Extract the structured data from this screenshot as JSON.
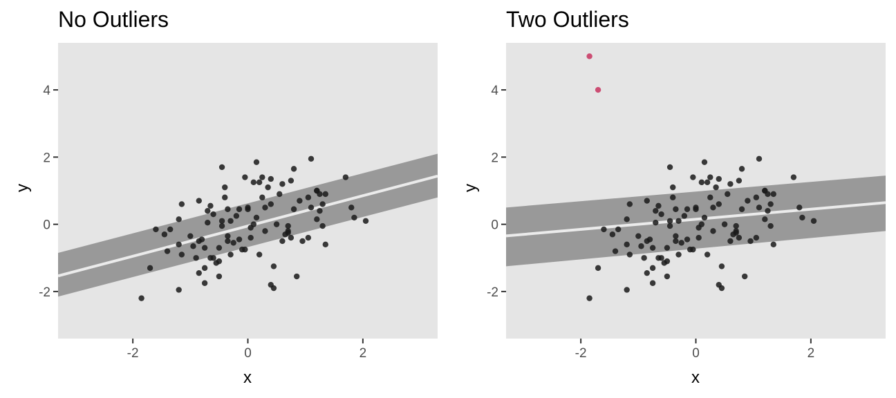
{
  "colors": {
    "panel_bg": "#e5e5e5",
    "ribbon": "#999999",
    "fit_line": "#ebebeb",
    "point": "#1a1a1a",
    "outlier": "#c8335f",
    "tick": "#333333"
  },
  "chart_data": [
    {
      "type": "scatter",
      "title": "No Outliers",
      "xlabel": "x",
      "ylabel": "y",
      "xlim": [
        -3.3,
        3.3
      ],
      "ylim": [
        -3.4,
        5.4
      ],
      "xticks": [
        -2,
        0,
        2
      ],
      "yticks": [
        -2,
        0,
        2,
        4
      ],
      "xtick_labels": [
        "-2",
        "0",
        "2"
      ],
      "ytick_labels": [
        "-2",
        "0",
        "2",
        "4"
      ],
      "grid": false,
      "fit": {
        "slope": 0.45,
        "intercept": -0.05,
        "ribbon_at_xmin": [
          -2.15,
          -0.85
        ],
        "ribbon_at_xmax": [
          0.8,
          2.1
        ]
      },
      "points": [
        [
          -1.85,
          -2.2
        ],
        [
          -1.7,
          -1.3
        ],
        [
          -1.6,
          -0.15
        ],
        [
          -1.45,
          -0.3
        ],
        [
          -1.4,
          -0.8
        ],
        [
          -1.35,
          -0.15
        ],
        [
          -1.2,
          -1.95
        ],
        [
          -1.2,
          -0.6
        ],
        [
          -1.2,
          0.15
        ],
        [
          -1.15,
          0.6
        ],
        [
          -1.15,
          -0.9
        ],
        [
          -1.0,
          -0.35
        ],
        [
          -0.95,
          -0.65
        ],
        [
          -0.9,
          -1.0
        ],
        [
          -0.85,
          -0.5
        ],
        [
          -0.85,
          -1.45
        ],
        [
          -0.85,
          0.7
        ],
        [
          -0.8,
          -0.45
        ],
        [
          -0.75,
          -0.7
        ],
        [
          -0.75,
          -1.3
        ],
        [
          -0.75,
          -1.75
        ],
        [
          -0.7,
          0.05
        ],
        [
          -0.7,
          0.4
        ],
        [
          -0.65,
          0.55
        ],
        [
          -0.65,
          -1.0
        ],
        [
          -0.6,
          0.3
        ],
        [
          -0.6,
          -1.0
        ],
        [
          -0.55,
          -1.15
        ],
        [
          -0.5,
          -1.55
        ],
        [
          -0.5,
          -1.1
        ],
        [
          -0.5,
          -0.7
        ],
        [
          -0.45,
          0.1
        ],
        [
          -0.45,
          -0.05
        ],
        [
          -0.45,
          1.7
        ],
        [
          -0.4,
          1.1
        ],
        [
          -0.4,
          0.8
        ],
        [
          -0.35,
          -0.5
        ],
        [
          -0.35,
          -0.35
        ],
        [
          -0.35,
          0.45
        ],
        [
          -0.3,
          -0.9
        ],
        [
          -0.25,
          -0.55
        ],
        [
          -0.2,
          0.25
        ],
        [
          -0.15,
          0.45
        ],
        [
          -0.15,
          -0.45
        ],
        [
          -0.1,
          -0.75
        ],
        [
          -0.05,
          1.4
        ],
        [
          0.0,
          0.45
        ],
        [
          0.0,
          0.5
        ],
        [
          0.05,
          -0.1
        ],
        [
          0.05,
          -0.4
        ],
        [
          0.1,
          0.0
        ],
        [
          0.1,
          1.25
        ],
        [
          0.15,
          0.2
        ],
        [
          0.15,
          1.85
        ],
        [
          0.2,
          -0.9
        ],
        [
          0.2,
          1.25
        ],
        [
          0.25,
          0.8
        ],
        [
          0.25,
          1.4
        ],
        [
          0.3,
          -0.2
        ],
        [
          0.3,
          0.5
        ],
        [
          0.35,
          1.1
        ],
        [
          0.4,
          1.35
        ],
        [
          0.4,
          0.6
        ],
        [
          0.4,
          -1.8
        ],
        [
          0.45,
          -1.9
        ],
        [
          0.45,
          -1.25
        ],
        [
          0.5,
          0.0
        ],
        [
          0.55,
          0.9
        ],
        [
          0.6,
          1.2
        ],
        [
          0.65,
          -0.3
        ],
        [
          0.7,
          -0.2
        ],
        [
          0.7,
          -0.25
        ],
        [
          0.7,
          -0.05
        ],
        [
          0.75,
          -0.4
        ],
        [
          0.75,
          1.3
        ],
        [
          0.8,
          0.45
        ],
        [
          0.8,
          1.65
        ],
        [
          0.85,
          -1.55
        ],
        [
          0.9,
          0.7
        ],
        [
          0.95,
          -0.5
        ],
        [
          1.05,
          0.8
        ],
        [
          1.05,
          -0.4
        ],
        [
          1.1,
          1.95
        ],
        [
          1.1,
          0.5
        ],
        [
          1.2,
          1.0
        ],
        [
          1.2,
          0.15
        ],
        [
          1.25,
          0.9
        ],
        [
          1.3,
          0.6
        ],
        [
          1.3,
          -0.05
        ],
        [
          1.35,
          0.9
        ],
        [
          1.35,
          -0.6
        ],
        [
          1.25,
          0.4
        ],
        [
          1.7,
          1.4
        ],
        [
          1.8,
          0.5
        ],
        [
          1.85,
          0.2
        ],
        [
          2.05,
          0.1
        ],
        [
          1.2,
          1.0
        ],
        [
          -0.3,
          0.1
        ],
        [
          0.6,
          -0.5
        ],
        [
          -0.05,
          -0.75
        ]
      ],
      "outliers": []
    },
    {
      "type": "scatter",
      "title": "Two Outliers",
      "xlabel": "x",
      "ylabel": "y",
      "xlim": [
        -3.3,
        3.3
      ],
      "ylim": [
        -3.4,
        5.4
      ],
      "xticks": [
        -2,
        0,
        2
      ],
      "yticks": [
        -2,
        0,
        2,
        4
      ],
      "xtick_labels": [
        "-2",
        "0",
        "2"
      ],
      "ytick_labels": [
        "-2",
        "0",
        "2",
        "4"
      ],
      "grid": false,
      "fit": {
        "slope": 0.15,
        "intercept": 0.15,
        "ribbon_at_xmin": [
          -1.25,
          0.5
        ],
        "ribbon_at_xmax": [
          -0.2,
          1.45
        ]
      },
      "points": [
        [
          -1.85,
          -2.2
        ],
        [
          -1.7,
          -1.3
        ],
        [
          -1.6,
          -0.15
        ],
        [
          -1.45,
          -0.3
        ],
        [
          -1.4,
          -0.8
        ],
        [
          -1.35,
          -0.15
        ],
        [
          -1.2,
          -1.95
        ],
        [
          -1.2,
          -0.6
        ],
        [
          -1.2,
          0.15
        ],
        [
          -1.15,
          0.6
        ],
        [
          -1.15,
          -0.9
        ],
        [
          -1.0,
          -0.35
        ],
        [
          -0.95,
          -0.65
        ],
        [
          -0.9,
          -1.0
        ],
        [
          -0.85,
          -0.5
        ],
        [
          -0.85,
          -1.45
        ],
        [
          -0.85,
          0.7
        ],
        [
          -0.8,
          -0.45
        ],
        [
          -0.75,
          -0.7
        ],
        [
          -0.75,
          -1.3
        ],
        [
          -0.75,
          -1.75
        ],
        [
          -0.7,
          0.05
        ],
        [
          -0.7,
          0.4
        ],
        [
          -0.65,
          0.55
        ],
        [
          -0.65,
          -1.0
        ],
        [
          -0.6,
          0.3
        ],
        [
          -0.6,
          -1.0
        ],
        [
          -0.55,
          -1.15
        ],
        [
          -0.5,
          -1.55
        ],
        [
          -0.5,
          -1.1
        ],
        [
          -0.5,
          -0.7
        ],
        [
          -0.45,
          0.1
        ],
        [
          -0.45,
          -0.05
        ],
        [
          -0.45,
          1.7
        ],
        [
          -0.4,
          1.1
        ],
        [
          -0.4,
          0.8
        ],
        [
          -0.35,
          -0.5
        ],
        [
          -0.35,
          -0.35
        ],
        [
          -0.35,
          0.45
        ],
        [
          -0.3,
          -0.9
        ],
        [
          -0.25,
          -0.55
        ],
        [
          -0.2,
          0.25
        ],
        [
          -0.15,
          0.45
        ],
        [
          -0.15,
          -0.45
        ],
        [
          -0.1,
          -0.75
        ],
        [
          -0.05,
          1.4
        ],
        [
          0.0,
          0.45
        ],
        [
          0.0,
          0.5
        ],
        [
          0.05,
          -0.1
        ],
        [
          0.05,
          -0.4
        ],
        [
          0.1,
          0.0
        ],
        [
          0.1,
          1.25
        ],
        [
          0.15,
          0.2
        ],
        [
          0.15,
          1.85
        ],
        [
          0.2,
          -0.9
        ],
        [
          0.2,
          1.25
        ],
        [
          0.25,
          0.8
        ],
        [
          0.25,
          1.4
        ],
        [
          0.3,
          -0.2
        ],
        [
          0.3,
          0.5
        ],
        [
          0.35,
          1.1
        ],
        [
          0.4,
          1.35
        ],
        [
          0.4,
          0.6
        ],
        [
          0.4,
          -1.8
        ],
        [
          0.45,
          -1.9
        ],
        [
          0.45,
          -1.25
        ],
        [
          0.5,
          0.0
        ],
        [
          0.55,
          0.9
        ],
        [
          0.6,
          1.2
        ],
        [
          0.65,
          -0.3
        ],
        [
          0.7,
          -0.2
        ],
        [
          0.7,
          -0.25
        ],
        [
          0.7,
          -0.05
        ],
        [
          0.75,
          -0.4
        ],
        [
          0.75,
          1.3
        ],
        [
          0.8,
          0.45
        ],
        [
          0.8,
          1.65
        ],
        [
          0.85,
          -1.55
        ],
        [
          0.9,
          0.7
        ],
        [
          0.95,
          -0.5
        ],
        [
          1.05,
          0.8
        ],
        [
          1.05,
          -0.4
        ],
        [
          1.1,
          1.95
        ],
        [
          1.1,
          0.5
        ],
        [
          1.2,
          1.0
        ],
        [
          1.2,
          0.15
        ],
        [
          1.25,
          0.9
        ],
        [
          1.3,
          0.6
        ],
        [
          1.3,
          -0.05
        ],
        [
          1.35,
          0.9
        ],
        [
          1.35,
          -0.6
        ],
        [
          1.25,
          0.4
        ],
        [
          1.7,
          1.4
        ],
        [
          1.8,
          0.5
        ],
        [
          1.85,
          0.2
        ],
        [
          2.05,
          0.1
        ],
        [
          1.2,
          1.0
        ],
        [
          -0.3,
          0.1
        ],
        [
          0.6,
          -0.5
        ],
        [
          -0.05,
          -0.75
        ]
      ],
      "outliers": [
        [
          -1.85,
          5.0
        ],
        [
          -1.7,
          4.0
        ]
      ]
    }
  ]
}
